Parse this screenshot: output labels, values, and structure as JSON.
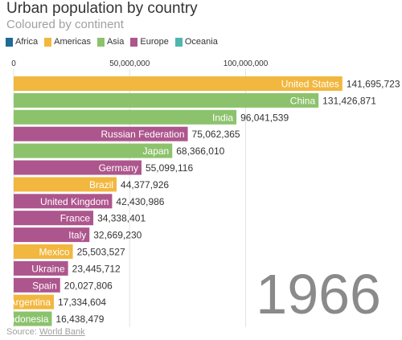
{
  "title": "Urban population by country",
  "subtitle": "Coloured by continent",
  "legend": [
    {
      "label": "Africa",
      "color": "#1f6b94"
    },
    {
      "label": "Americas",
      "color": "#f2b73f"
    },
    {
      "label": "Asia",
      "color": "#8cc26c"
    },
    {
      "label": "Europe",
      "color": "#ad568d"
    },
    {
      "label": "Oceania",
      "color": "#4fb6ae"
    }
  ],
  "source_prefix": "Source:",
  "source_link": "World Bank",
  "year": "1966",
  "chart_data": {
    "type": "bar",
    "orientation": "horizontal",
    "categories": [
      "United States",
      "China",
      "India",
      "Russian Federation",
      "Japan",
      "Germany",
      "Brazil",
      "United Kingdom",
      "France",
      "Italy",
      "Mexico",
      "Ukraine",
      "Spain",
      "Argentina",
      "Indonesia"
    ],
    "values": [
      141695723,
      131426871,
      96041539,
      75062365,
      68366010,
      55099116,
      44377926,
      42430986,
      34338401,
      32669230,
      25503527,
      23445712,
      20027806,
      17334604,
      16438479
    ],
    "value_labels": [
      "141,695,723",
      "131,426,871",
      "96,041,539",
      "75,062,365",
      "68,366,010",
      "55,099,116",
      "44,377,926",
      "42,430,986",
      "34,338,401",
      "32,669,230",
      "25,503,527",
      "23,445,712",
      "20,027,806",
      "17,334,604",
      "16,438,479"
    ],
    "continents": [
      "Americas",
      "Asia",
      "Asia",
      "Europe",
      "Asia",
      "Europe",
      "Americas",
      "Europe",
      "Europe",
      "Europe",
      "Americas",
      "Europe",
      "Europe",
      "Americas",
      "Asia"
    ],
    "xticks": [
      0,
      50000000,
      100000000
    ],
    "xtick_labels": [
      "0",
      "50,000,000",
      "100,000,000"
    ],
    "xlim": [
      0,
      175000000
    ],
    "grid": true,
    "legend_position": "top-left"
  }
}
